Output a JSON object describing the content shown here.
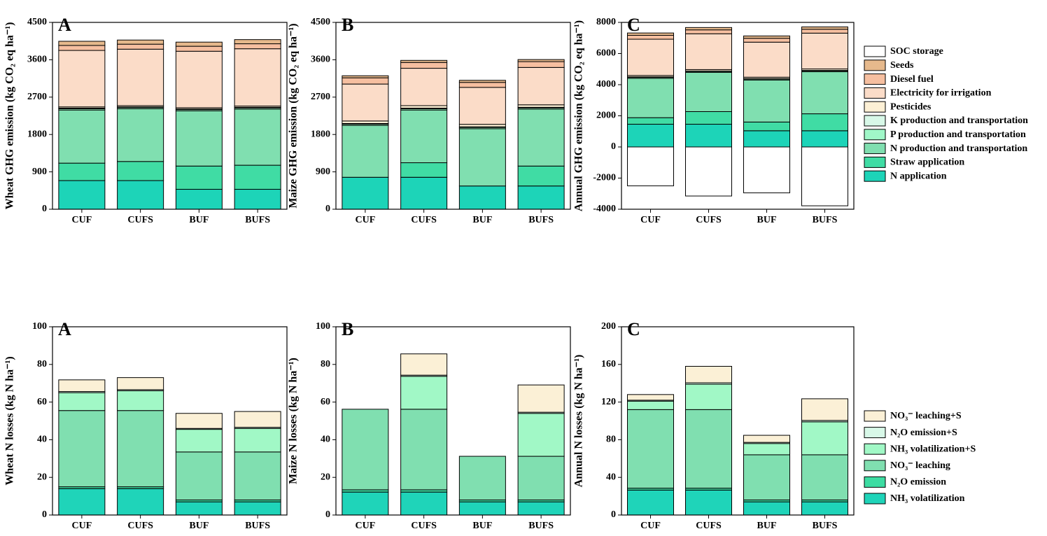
{
  "chart_data": [
    {
      "type": "bar",
      "stacked": true,
      "title": "A",
      "ylabel": "Wheat GHG emission (kg CO₂ eq ha⁻¹)",
      "categories": [
        "CUF",
        "CUFS",
        "BUF",
        "BUFS"
      ],
      "ylim": [
        0,
        4500
      ],
      "yticks": [
        0,
        900,
        1800,
        2700,
        3600,
        4500
      ],
      "series": [
        {
          "name": "N application",
          "color": "#1dd4b8",
          "values": [
            690,
            690,
            480,
            480
          ]
        },
        {
          "name": "Straw  application",
          "color": "#40dca4",
          "values": [
            420,
            460,
            560,
            580
          ]
        },
        {
          "name": "N production and transportation",
          "color": "#80dfb0",
          "values": [
            1280,
            1270,
            1330,
            1350
          ]
        },
        {
          "name": "P production and transportation",
          "color": "#a0f7c8",
          "values": [
            30,
            30,
            30,
            30
          ]
        },
        {
          "name": "K production and transportation",
          "color": "#d8f8e8",
          "values": [
            15,
            15,
            15,
            15
          ]
        },
        {
          "name": "Pesticides",
          "color": "#fdf0d5",
          "values": [
            30,
            30,
            30,
            30
          ]
        },
        {
          "name": "Electricity for irrigation",
          "color": "#fbdcc8",
          "values": [
            1360,
            1360,
            1360,
            1380
          ]
        },
        {
          "name": "Diesel fuel",
          "color": "#f6bfa0",
          "values": [
            120,
            120,
            120,
            120
          ]
        },
        {
          "name": "Seeds",
          "color": "#e6b98c",
          "values": [
            100,
            100,
            100,
            100
          ]
        }
      ]
    },
    {
      "type": "bar",
      "stacked": true,
      "title": "B",
      "ylabel": "Maize GHG emission (kg CO₂ eq ha⁻¹)",
      "categories": [
        "CUF",
        "CUFS",
        "BUF",
        "BUFS"
      ],
      "ylim": [
        0,
        4500
      ],
      "yticks": [
        0,
        900,
        1800,
        2700,
        3600,
        4500
      ],
      "series": [
        {
          "name": "N application",
          "color": "#1dd4b8",
          "values": [
            770,
            770,
            560,
            560
          ]
        },
        {
          "name": "Straw  application",
          "color": "#40dca4",
          "values": [
            0,
            350,
            0,
            480
          ]
        },
        {
          "name": "N production and transportation",
          "color": "#80dfb0",
          "values": [
            1250,
            1270,
            1380,
            1370
          ]
        },
        {
          "name": "P production and transportation",
          "color": "#a0f7c8",
          "values": [
            30,
            30,
            30,
            30
          ]
        },
        {
          "name": "K production and transportation",
          "color": "#d8f8e8",
          "values": [
            15,
            15,
            15,
            15
          ]
        },
        {
          "name": "Pesticides",
          "color": "#fdf0d5",
          "values": [
            60,
            60,
            60,
            60
          ]
        },
        {
          "name": "Electricity for irrigation",
          "color": "#fbdcc8",
          "values": [
            890,
            900,
            890,
            900
          ]
        },
        {
          "name": "Diesel fuel",
          "color": "#f6bfa0",
          "values": [
            150,
            140,
            120,
            140
          ]
        },
        {
          "name": "Seeds",
          "color": "#e6b98c",
          "values": [
            50,
            50,
            50,
            50
          ]
        }
      ]
    },
    {
      "type": "bar",
      "stacked": true,
      "title": "C",
      "ylabel": "Annual GHG emission (kg CO₂ eq ha⁻¹)",
      "legend": "right",
      "categories": [
        "CUF",
        "CUFS",
        "BUF",
        "BUFS"
      ],
      "ylim": [
        -4000,
        8000
      ],
      "yticks": [
        -4000,
        -2000,
        0,
        2000,
        4000,
        6000,
        8000
      ],
      "series": [
        {
          "name": "N application",
          "color": "#1dd4b8",
          "values": [
            1460,
            1460,
            1040,
            1040
          ]
        },
        {
          "name": "Straw  application",
          "color": "#40dca4",
          "values": [
            420,
            810,
            560,
            1090
          ]
        },
        {
          "name": "N production and transportation",
          "color": "#80dfb0",
          "values": [
            2530,
            2520,
            2700,
            2700
          ]
        },
        {
          "name": "P production and transportation",
          "color": "#a0f7c8",
          "values": [
            60,
            60,
            60,
            60
          ]
        },
        {
          "name": "K production and transportation",
          "color": "#d8f8e8",
          "values": [
            30,
            30,
            30,
            30
          ]
        },
        {
          "name": "Pesticides",
          "color": "#fdf0d5",
          "values": [
            90,
            90,
            90,
            90
          ]
        },
        {
          "name": "Electricity for irrigation",
          "color": "#fbdcc8",
          "values": [
            2330,
            2300,
            2250,
            2300
          ]
        },
        {
          "name": "Diesel fuel",
          "color": "#f6bfa0",
          "values": [
            250,
            250,
            250,
            250
          ]
        },
        {
          "name": "Seeds",
          "color": "#e6b98c",
          "values": [
            150,
            150,
            150,
            150
          ]
        },
        {
          "name": "SOC storage",
          "color": "#ffffff",
          "values": [
            -2500,
            -3150,
            -2950,
            -3780
          ]
        }
      ]
    },
    {
      "type": "bar",
      "stacked": true,
      "title": "A",
      "ylabel": "Wheat N losses (kg N ha⁻¹)",
      "categories": [
        "CUF",
        "CUFS",
        "BUF",
        "BUFS"
      ],
      "ylim": [
        0,
        100
      ],
      "yticks": [
        0,
        20,
        40,
        60,
        80,
        100
      ],
      "series": [
        {
          "name": "NH₃ volatilization",
          "color": "#1fd4b9",
          "values": [
            14,
            14,
            7,
            7
          ]
        },
        {
          "name": "N₂O emission",
          "color": "#3ddca2",
          "values": [
            1,
            1,
            1,
            1
          ]
        },
        {
          "name": "NO₃⁻ leaching",
          "color": "#80dfb0",
          "values": [
            40.5,
            40.5,
            25.5,
            25.5
          ]
        },
        {
          "name": "NH₃ volatilization+S",
          "color": "#a1f8c6",
          "values": [
            9.5,
            10.5,
            12,
            12.5
          ]
        },
        {
          "name": "N₂O emission+S",
          "color": "#d8f8e8",
          "values": [
            0.6,
            0.6,
            0.5,
            0.6
          ]
        },
        {
          "name": "NO₃⁻ leaching+S",
          "color": "#fbf0d6",
          "values": [
            6.2,
            6.4,
            8,
            8.4
          ]
        }
      ]
    },
    {
      "type": "bar",
      "stacked": true,
      "title": "B",
      "ylabel": "Maize N losses (kg N ha⁻¹)",
      "categories": [
        "CUF",
        "CUFS",
        "BUF",
        "BUFS"
      ],
      "ylim": [
        0,
        100
      ],
      "yticks": [
        0,
        20,
        40,
        60,
        80,
        100
      ],
      "series": [
        {
          "name": "NH₃ volatilization",
          "color": "#1fd4b9",
          "values": [
            12.2,
            12.2,
            7,
            7
          ]
        },
        {
          "name": "N₂O emission",
          "color": "#3ddca2",
          "values": [
            1.2,
            1.2,
            1,
            1
          ]
        },
        {
          "name": "NO₃⁻ leaching",
          "color": "#80dfb0",
          "values": [
            42.8,
            42.8,
            23.2,
            23.2
          ]
        },
        {
          "name": "NH₃ volatilization+S",
          "color": "#a1f8c6",
          "values": [
            0,
            17.5,
            0,
            22.8
          ]
        },
        {
          "name": "N₂O emission+S",
          "color": "#d8f8e8",
          "values": [
            0,
            0.6,
            0,
            0.6
          ]
        },
        {
          "name": "NO₃⁻ leaching+S",
          "color": "#fbf0d6",
          "values": [
            0,
            11.3,
            0,
            14.5
          ]
        }
      ]
    },
    {
      "type": "bar",
      "stacked": true,
      "title": "C",
      "ylabel": "Annual N losses (kg N ha⁻¹)",
      "legend": "right",
      "categories": [
        "CUF",
        "CUFS",
        "BUF",
        "BUFS"
      ],
      "ylim": [
        0,
        200
      ],
      "yticks": [
        0,
        40,
        80,
        120,
        160,
        200
      ],
      "series": [
        {
          "name": "NH₃ volatilization",
          "color": "#1fd4b9",
          "values": [
            26.5,
            26.5,
            14,
            14
          ]
        },
        {
          "name": "N₂O emission",
          "color": "#3ddca2",
          "values": [
            2,
            2,
            2,
            2
          ]
        },
        {
          "name": "NO₃⁻ leaching",
          "color": "#80dfb0",
          "values": [
            83.5,
            83.5,
            48,
            48
          ]
        },
        {
          "name": "NH₃ volatilization+S",
          "color": "#a1f8c6",
          "values": [
            9,
            27,
            12,
            35
          ]
        },
        {
          "name": "N₂O emission+S",
          "color": "#d8f8e8",
          "values": [
            1,
            1.5,
            1.2,
            1.5
          ]
        },
        {
          "name": "NO₃⁻ leaching+S",
          "color": "#fbf0d6",
          "values": [
            6,
            17.5,
            7.5,
            23
          ]
        }
      ]
    }
  ]
}
